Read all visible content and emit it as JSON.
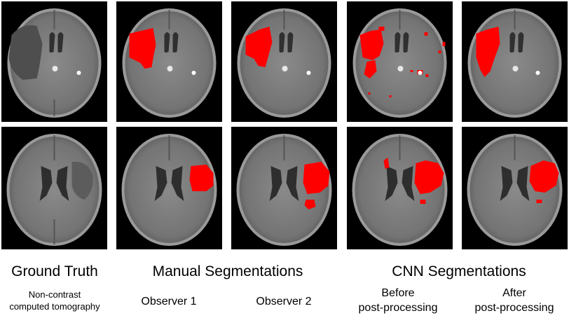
{
  "headers": {
    "ground_truth": "Ground Truth",
    "manual": "Manual Segmentations",
    "cnn": "CNN Segmentations"
  },
  "subheaders": {
    "ground_truth_line1": "Non-contrast",
    "ground_truth_line2": "computed tomography",
    "observer1": "Observer 1",
    "observer2": "Observer 2",
    "before_line1": "Before",
    "before_line2": "post-processing",
    "after_line1": "After",
    "after_line2": "post-processing"
  },
  "colors": {
    "background": "#000000",
    "brain": "#7a7a7a",
    "ventricle": "#3a3a3a",
    "lesion_dark": "#4a4a4a",
    "segmentation": "#ff0000"
  },
  "images": {
    "row1": [
      {
        "name": "ct-row1-ground-truth",
        "overlay": "none"
      },
      {
        "name": "ct-row1-observer1",
        "overlay": "manual"
      },
      {
        "name": "ct-row1-observer2",
        "overlay": "manual"
      },
      {
        "name": "ct-row1-cnn-before",
        "overlay": "cnn-before"
      },
      {
        "name": "ct-row1-cnn-after",
        "overlay": "cnn-after"
      }
    ],
    "row2": [
      {
        "name": "ct-row2-ground-truth",
        "overlay": "none"
      },
      {
        "name": "ct-row2-observer1",
        "overlay": "manual"
      },
      {
        "name": "ct-row2-observer2",
        "overlay": "manual"
      },
      {
        "name": "ct-row2-cnn-before",
        "overlay": "cnn-before"
      },
      {
        "name": "ct-row2-cnn-after",
        "overlay": "cnn-after"
      }
    ]
  }
}
